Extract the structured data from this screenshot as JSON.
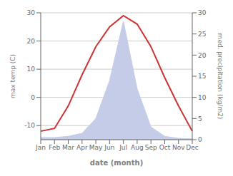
{
  "chart_data": {
    "type": "line",
    "xlabel": "date (month)",
    "ylabel": "max temp (C)",
    "y2label": "med. precipitation (kg/m2)",
    "categories": [
      "Jan",
      "Feb",
      "Mar",
      "Apr",
      "May",
      "Jun",
      "Jul",
      "Aug",
      "Sep",
      "Oct",
      "Nov",
      "Dec"
    ],
    "series": [
      {
        "type": "area",
        "axis": "y2",
        "color": "#c5cce8",
        "values": [
          0.5,
          0.5,
          0.8,
          1.5,
          5.0,
          14,
          28,
          12,
          3.0,
          0.8,
          0.3,
          0.2
        ]
      },
      {
        "type": "line",
        "color": "#cc3333",
        "values": [
          -12,
          -11,
          -3,
          8,
          18,
          25,
          29,
          26,
          18,
          7,
          -3,
          -12
        ]
      }
    ],
    "ylim": [
      -15,
      30
    ],
    "yticks": [
      -10,
      0,
      10,
      20,
      30
    ],
    "y2lim": [
      0,
      30
    ],
    "y2ticks": [
      0,
      5,
      10,
      15,
      20,
      25,
      30
    ],
    "grid": true
  }
}
